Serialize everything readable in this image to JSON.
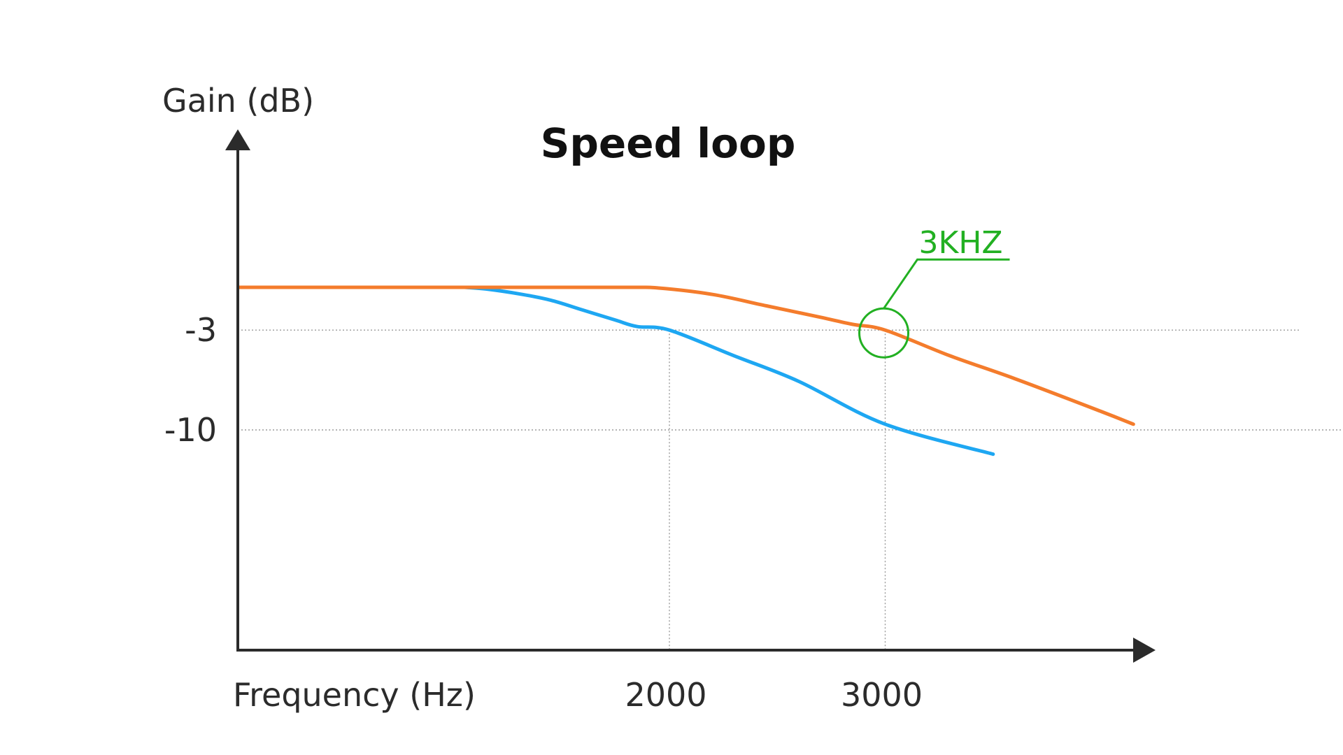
{
  "chart_data": {
    "type": "line",
    "title": "Speed loop",
    "ylabel": "Gain (dB)",
    "xlabel": "Frequency (Hz)",
    "x_ticks": [
      "2000",
      "3000"
    ],
    "y_ticks": [
      "-3",
      "-10"
    ],
    "colors": {
      "series_a": "#1ea7f2",
      "series_b": "#f47c2c",
      "annotation": "#22b022",
      "axis": "#2b2b2b",
      "grid": "#9a9a9a"
    },
    "annotation": {
      "label": "3KHZ",
      "x": 3000,
      "y": -3
    },
    "series": [
      {
        "name": "blue",
        "color": "#1ea7f2",
        "points": [
          [
            1050,
            0
          ],
          [
            1150,
            -0.12
          ],
          [
            1300,
            -0.45
          ],
          [
            1450,
            -0.9
          ],
          [
            1600,
            -1.6
          ],
          [
            1750,
            -2.3
          ],
          [
            1850,
            -2.75
          ],
          [
            2000,
            -3
          ],
          [
            2300,
            -4.8
          ],
          [
            2600,
            -6.6
          ],
          [
            3000,
            -9.6
          ],
          [
            3500,
            -11.7
          ]
        ]
      },
      {
        "name": "orange",
        "color": "#f47c2c",
        "points": [
          [
            0,
            0
          ],
          [
            1150,
            0
          ],
          [
            1800,
            0
          ],
          [
            1950,
            -0.05
          ],
          [
            2200,
            -0.5
          ],
          [
            2450,
            -1.3
          ],
          [
            2700,
            -2.1
          ],
          [
            2850,
            -2.6
          ],
          [
            3000,
            -3
          ],
          [
            3300,
            -4.8
          ],
          [
            3600,
            -6.4
          ],
          [
            4000,
            -8.7
          ],
          [
            4150,
            -9.6
          ]
        ]
      }
    ]
  }
}
